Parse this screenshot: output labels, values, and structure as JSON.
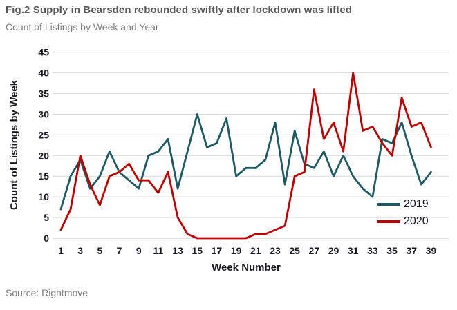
{
  "header": {
    "title": "Fig.2 Supply in Bearsden rebounded swiftly after lockdown was lifted",
    "subtitle": "Count of Listings by Week and Year"
  },
  "source": "Source: Rightmove",
  "chart_data": {
    "type": "line",
    "title": "Fig.2 Supply in Bearsden rebounded swiftly after lockdown was lifted",
    "subtitle": "Count of Listings by Week and Year",
    "xlabel": "Week Number",
    "ylabel": "Count of Listings by Week",
    "x": [
      1,
      2,
      3,
      4,
      5,
      6,
      7,
      8,
      9,
      10,
      11,
      12,
      13,
      14,
      15,
      16,
      17,
      18,
      19,
      20,
      21,
      22,
      23,
      24,
      25,
      26,
      27,
      28,
      29,
      30,
      31,
      32,
      33,
      34,
      35,
      36,
      37,
      38,
      39
    ],
    "series": [
      {
        "name": "2019",
        "color": "#1d5a64",
        "values": [
          7,
          15,
          19,
          12,
          15,
          21,
          16,
          14,
          12,
          20,
          21,
          24,
          12,
          21,
          30,
          22,
          23,
          29,
          15,
          17,
          17,
          19,
          28,
          13,
          26,
          18,
          17,
          21,
          15,
          20,
          15,
          12,
          10,
          24,
          23,
          28,
          20,
          13,
          16
        ]
      },
      {
        "name": "2020",
        "color": "#c00000",
        "values": [
          2,
          7,
          20,
          13,
          8,
          15,
          16,
          18,
          14,
          14,
          11,
          16,
          5,
          1,
          0,
          0,
          0,
          0,
          0,
          0,
          1,
          1,
          2,
          3,
          15,
          16,
          36,
          24,
          28,
          21,
          40,
          26,
          27,
          23,
          20,
          34,
          27,
          28,
          22
        ]
      }
    ],
    "ylim": [
      0,
      45
    ],
    "y_ticks": [
      0,
      5,
      10,
      15,
      20,
      25,
      30,
      35,
      40,
      45
    ],
    "x_ticks": [
      1,
      3,
      5,
      7,
      9,
      11,
      13,
      15,
      17,
      19,
      21,
      23,
      25,
      27,
      29,
      31,
      33,
      35,
      37,
      39
    ],
    "grid": "horizontal",
    "legend_position": "inside-right",
    "grid_color": "#d9d9d9",
    "baseline_color": "#bfbfbf"
  }
}
